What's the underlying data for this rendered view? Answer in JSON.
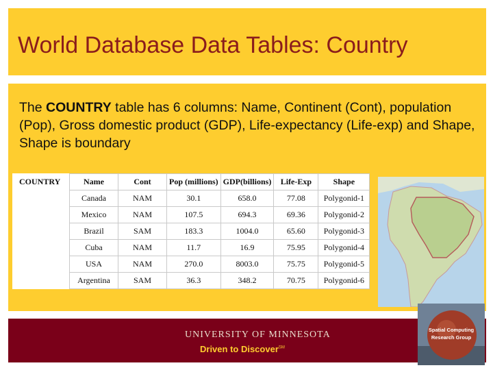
{
  "slide": {
    "title": "World Database Data Tables: Country",
    "body_prefix": "The ",
    "body_bold": "COUNTRY",
    "body_suffix": " table has 6 columns: Name, Continent (Cont), population (Pop), Gross domestic product (GDP), Life-expectancy (Life-exp) and Shape, Shape is boundary"
  },
  "table": {
    "label": "COUNTRY",
    "headers": [
      "Name",
      "Cont",
      "Pop (millions)",
      "GDP(billions)",
      "Life-Exp",
      "Shape"
    ],
    "rows": [
      [
        "Canada",
        "NAM",
        "30.1",
        "658.0",
        "77.08",
        "Polygonid-1"
      ],
      [
        "Mexico",
        "NAM",
        "107.5",
        "694.3",
        "69.36",
        "Polygonid-2"
      ],
      [
        "Brazil",
        "SAM",
        "183.3",
        "1004.0",
        "65.60",
        "Polygonid-3"
      ],
      [
        "Cuba",
        "NAM",
        "11.7",
        "16.9",
        "75.95",
        "Polygonid-4"
      ],
      [
        "USA",
        "NAM",
        "270.0",
        "8003.0",
        "75.75",
        "Polygonid-5"
      ],
      [
        "Argentina",
        "SAM",
        "36.3",
        "348.2",
        "70.75",
        "Polygonid-6"
      ]
    ]
  },
  "footer": {
    "university": "UNIVERSITY OF MINNESOTA",
    "tagline": "Driven to Discover",
    "tagline_mark": "SM"
  },
  "logo": {
    "line1": "Spatial Computing",
    "line2": "Research Group"
  },
  "colors": {
    "gold": "#fecd2f",
    "maroon": "#7a0019",
    "title": "#8a1c1c"
  }
}
